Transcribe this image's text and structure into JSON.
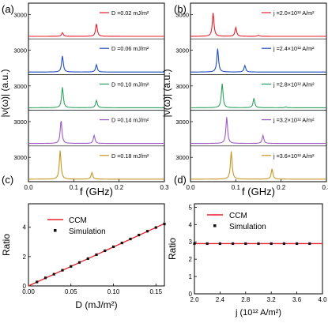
{
  "chart_data": [
    {
      "panel": "(a)",
      "type": "line",
      "xlabel": "f (GHz)",
      "ylabel": "|ν(ω)| (a.u.)",
      "xlim": [
        0,
        0.3
      ],
      "xticks": [
        "0.0",
        "0.1",
        "0.2",
        "0.3"
      ],
      "ylim_per_trace": [
        0,
        3000
      ],
      "ytick_label": "3000",
      "series": [
        {
          "name": "D =0.02 mJ/m²",
          "color": "#e8202a",
          "peaks": [
            {
              "x": 0.075,
              "y": 500
            },
            {
              "x": 0.15,
              "y": 1700
            }
          ]
        },
        {
          "name": "D =0.06 mJ/m²",
          "color": "#1f4fbf",
          "peaks": [
            {
              "x": 0.075,
              "y": 2200
            },
            {
              "x": 0.15,
              "y": 1000
            }
          ]
        },
        {
          "name": "D =0.10 mJ/m²",
          "color": "#2ca25f",
          "peaks": [
            {
              "x": 0.075,
              "y": 2800
            },
            {
              "x": 0.15,
              "y": 1000
            }
          ]
        },
        {
          "name": "D =0.14 mJ/m²",
          "color": "#a05ac8",
          "peaks": [
            {
              "x": 0.072,
              "y": 3200
            },
            {
              "x": 0.145,
              "y": 1100
            }
          ]
        },
        {
          "name": "D =0.18 mJ/m²",
          "color": "#c8961e",
          "peaks": [
            {
              "x": 0.07,
              "y": 3900
            },
            {
              "x": 0.14,
              "y": 900
            }
          ]
        }
      ]
    },
    {
      "panel": "(b)",
      "type": "line",
      "xlabel": "f (GHz)",
      "ylabel": "|ν(ω)| (a.u.)",
      "xlim": [
        0,
        0.3
      ],
      "xticks": [
        "0.0",
        "0.1",
        "0.2",
        "0.3"
      ],
      "ylim_per_trace": [
        0,
        3000
      ],
      "ytick_label": "3000",
      "series": [
        {
          "name": "j =2.0×10¹² A/m²",
          "color": "#e8202a",
          "peaks": [
            {
              "x": 0.05,
              "y": 3200
            },
            {
              "x": 0.1,
              "y": 1200
            },
            {
              "x": 0.15,
              "y": 150
            }
          ]
        },
        {
          "name": "j =2.4×10¹² A/m²",
          "color": "#1f4fbf",
          "peaks": [
            {
              "x": 0.06,
              "y": 3200
            },
            {
              "x": 0.12,
              "y": 900
            }
          ]
        },
        {
          "name": "j =2.8×10¹² A/m²",
          "color": "#2ca25f",
          "peaks": [
            {
              "x": 0.07,
              "y": 3300
            },
            {
              "x": 0.14,
              "y": 1300
            },
            {
              "x": 0.21,
              "y": 120
            }
          ]
        },
        {
          "name": "j =3.2×10¹² A/m²",
          "color": "#a05ac8",
          "peaks": [
            {
              "x": 0.08,
              "y": 3600
            },
            {
              "x": 0.16,
              "y": 1100
            }
          ]
        },
        {
          "name": "j =3.6×10¹² A/m²",
          "color": "#c8961e",
          "peaks": [
            {
              "x": 0.09,
              "y": 3800
            },
            {
              "x": 0.18,
              "y": 1400
            }
          ]
        }
      ]
    },
    {
      "panel": "(c)",
      "type": "scatter",
      "xlabel": "D (mJ/m²)",
      "ylabel": "Ratio",
      "xlim": [
        0,
        0.16
      ],
      "ylim": [
        0,
        5.6
      ],
      "xticks": [
        0.0,
        0.05,
        0.1,
        0.15
      ],
      "xtick_labels": [
        "0.00",
        "0.05",
        "0.10",
        "0.15"
      ],
      "yticks": [
        0,
        2,
        4
      ],
      "legend": [
        "CCM",
        "Simulation"
      ],
      "ccm_line": {
        "x": [
          0,
          0.16
        ],
        "y": [
          0.0,
          4.25
        ]
      },
      "simulation": {
        "x": [
          0.01,
          0.02,
          0.03,
          0.04,
          0.05,
          0.06,
          0.07,
          0.08,
          0.09,
          0.1,
          0.11,
          0.12,
          0.13,
          0.14,
          0.15,
          0.16
        ],
        "y": [
          0.27,
          0.55,
          0.8,
          1.07,
          1.33,
          1.6,
          1.86,
          2.13,
          2.4,
          2.67,
          2.93,
          3.2,
          3.47,
          3.73,
          3.98,
          4.22
        ]
      }
    },
    {
      "panel": "(d)",
      "type": "scatter",
      "xlabel": "j (10¹² A/m²)",
      "ylabel": "Ratio",
      "xlim": [
        2.0,
        4.0
      ],
      "ylim": [
        0,
        5.2
      ],
      "xticks": [
        2.0,
        2.4,
        2.8,
        3.2,
        3.6,
        4.0
      ],
      "xtick_labels": [
        "2.0",
        "2.4",
        "2.8",
        "3.2",
        "3.6",
        "4.0"
      ],
      "yticks": [
        0,
        1,
        2,
        3,
        4,
        5
      ],
      "legend": [
        "CCM",
        "Simulation"
      ],
      "ccm_line": {
        "x": [
          2.0,
          4.0
        ],
        "y": [
          2.9,
          2.9
        ]
      },
      "simulation": {
        "x": [
          2.0,
          2.2,
          2.4,
          2.6,
          2.8,
          3.0,
          3.2,
          3.4,
          3.6,
          3.8
        ],
        "y": [
          2.9,
          2.9,
          2.9,
          2.9,
          2.9,
          2.9,
          2.9,
          2.9,
          2.9,
          2.9
        ]
      }
    }
  ]
}
